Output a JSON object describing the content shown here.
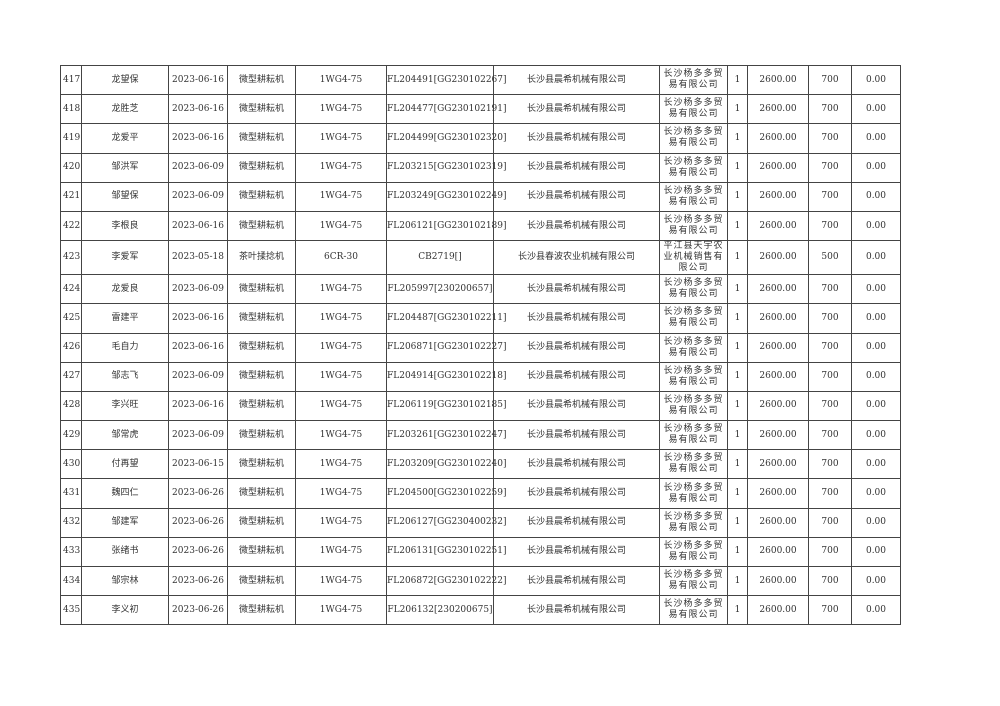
{
  "rows": [
    {
      "no": "417",
      "name": "龙望保",
      "date": "2023-06-16",
      "type": "微型耕耘机",
      "model": "1WG4-75",
      "serial": "FL204491[GG230102267]",
      "maker": "长沙县晨希机械有限公司",
      "dealer": "长沙杨多多贸易有限公司",
      "qty": "1",
      "price": "2600.00",
      "subsidy": "700",
      "other": "0.00"
    },
    {
      "no": "418",
      "name": "龙胜芝",
      "date": "2023-06-16",
      "type": "微型耕耘机",
      "model": "1WG4-75",
      "serial": "FL204477[GG230102191]",
      "maker": "长沙县晨希机械有限公司",
      "dealer": "长沙杨多多贸易有限公司",
      "qty": "1",
      "price": "2600.00",
      "subsidy": "700",
      "other": "0.00"
    },
    {
      "no": "419",
      "name": "龙爱平",
      "date": "2023-06-16",
      "type": "微型耕耘机",
      "model": "1WG4-75",
      "serial": "FL204499[GG230102320]",
      "maker": "长沙县晨希机械有限公司",
      "dealer": "长沙杨多多贸易有限公司",
      "qty": "1",
      "price": "2600.00",
      "subsidy": "700",
      "other": "0.00"
    },
    {
      "no": "420",
      "name": "邹洪军",
      "date": "2023-06-09",
      "type": "微型耕耘机",
      "model": "1WG4-75",
      "serial": "FL203215[GG230102319]",
      "maker": "长沙县晨希机械有限公司",
      "dealer": "长沙杨多多贸易有限公司",
      "qty": "1",
      "price": "2600.00",
      "subsidy": "700",
      "other": "0.00"
    },
    {
      "no": "421",
      "name": "邹望保",
      "date": "2023-06-09",
      "type": "微型耕耘机",
      "model": "1WG4-75",
      "serial": "FL203249[GG230102249]",
      "maker": "长沙县晨希机械有限公司",
      "dealer": "长沙杨多多贸易有限公司",
      "qty": "1",
      "price": "2600.00",
      "subsidy": "700",
      "other": "0.00"
    },
    {
      "no": "422",
      "name": "李根良",
      "date": "2023-06-16",
      "type": "微型耕耘机",
      "model": "1WG4-75",
      "serial": "FL206121[GG230102189]",
      "maker": "长沙县晨希机械有限公司",
      "dealer": "长沙杨多多贸易有限公司",
      "qty": "1",
      "price": "2600.00",
      "subsidy": "700",
      "other": "0.00"
    },
    {
      "no": "423",
      "name": "李爱军",
      "date": "2023-05-18",
      "type": "茶叶揉捻机",
      "model": "6CR-30",
      "serial": "CB2719[]",
      "maker": "长沙县春波农业机械有限公司",
      "dealer": "平江县天宇农业机械销售有限公司",
      "qty": "1",
      "price": "2600.00",
      "subsidy": "500",
      "other": "0.00"
    },
    {
      "no": "424",
      "name": "龙爱良",
      "date": "2023-06-09",
      "type": "微型耕耘机",
      "model": "1WG4-75",
      "serial": "FL205997[230200657]",
      "maker": "长沙县晨希机械有限公司",
      "dealer": "长沙杨多多贸易有限公司",
      "qty": "1",
      "price": "2600.00",
      "subsidy": "700",
      "other": "0.00"
    },
    {
      "no": "425",
      "name": "雷建平",
      "date": "2023-06-16",
      "type": "微型耕耘机",
      "model": "1WG4-75",
      "serial": "FL204487[GG230102211]",
      "maker": "长沙县晨希机械有限公司",
      "dealer": "长沙杨多多贸易有限公司",
      "qty": "1",
      "price": "2600.00",
      "subsidy": "700",
      "other": "0.00"
    },
    {
      "no": "426",
      "name": "毛自力",
      "date": "2023-06-16",
      "type": "微型耕耘机",
      "model": "1WG4-75",
      "serial": "FL206871[GG230102227]",
      "maker": "长沙县晨希机械有限公司",
      "dealer": "长沙杨多多贸易有限公司",
      "qty": "1",
      "price": "2600.00",
      "subsidy": "700",
      "other": "0.00"
    },
    {
      "no": "427",
      "name": "邹志飞",
      "date": "2023-06-09",
      "type": "微型耕耘机",
      "model": "1WG4-75",
      "serial": "FL204914[GG230102218]",
      "maker": "长沙县晨希机械有限公司",
      "dealer": "长沙杨多多贸易有限公司",
      "qty": "1",
      "price": "2600.00",
      "subsidy": "700",
      "other": "0.00"
    },
    {
      "no": "428",
      "name": "李兴旺",
      "date": "2023-06-16",
      "type": "微型耕耘机",
      "model": "1WG4-75",
      "serial": "FL206119[GG230102185]",
      "maker": "长沙县晨希机械有限公司",
      "dealer": "长沙杨多多贸易有限公司",
      "qty": "1",
      "price": "2600.00",
      "subsidy": "700",
      "other": "0.00"
    },
    {
      "no": "429",
      "name": "邹常虎",
      "date": "2023-06-09",
      "type": "微型耕耘机",
      "model": "1WG4-75",
      "serial": "FL203261[GG230102247]",
      "maker": "长沙县晨希机械有限公司",
      "dealer": "长沙杨多多贸易有限公司",
      "qty": "1",
      "price": "2600.00",
      "subsidy": "700",
      "other": "0.00"
    },
    {
      "no": "430",
      "name": "付再望",
      "date": "2023-06-15",
      "type": "微型耕耘机",
      "model": "1WG4-75",
      "serial": "FL203209[GG230102240]",
      "maker": "长沙县晨希机械有限公司",
      "dealer": "长沙杨多多贸易有限公司",
      "qty": "1",
      "price": "2600.00",
      "subsidy": "700",
      "other": "0.00"
    },
    {
      "no": "431",
      "name": "魏四仁",
      "date": "2023-06-26",
      "type": "微型耕耘机",
      "model": "1WG4-75",
      "serial": "FL204500[GG230102259]",
      "maker": "长沙县晨希机械有限公司",
      "dealer": "长沙杨多多贸易有限公司",
      "qty": "1",
      "price": "2600.00",
      "subsidy": "700",
      "other": "0.00"
    },
    {
      "no": "432",
      "name": "邹建军",
      "date": "2023-06-26",
      "type": "微型耕耘机",
      "model": "1WG4-75",
      "serial": "FL206127[GG230400232]",
      "maker": "长沙县晨希机械有限公司",
      "dealer": "长沙杨多多贸易有限公司",
      "qty": "1",
      "price": "2600.00",
      "subsidy": "700",
      "other": "0.00"
    },
    {
      "no": "433",
      "name": "张绪书",
      "date": "2023-06-26",
      "type": "微型耕耘机",
      "model": "1WG4-75",
      "serial": "FL206131[GG230102251]",
      "maker": "长沙县晨希机械有限公司",
      "dealer": "长沙杨多多贸易有限公司",
      "qty": "1",
      "price": "2600.00",
      "subsidy": "700",
      "other": "0.00"
    },
    {
      "no": "434",
      "name": "邹宗林",
      "date": "2023-06-26",
      "type": "微型耕耘机",
      "model": "1WG4-75",
      "serial": "FL206872[GG230102222]",
      "maker": "长沙县晨希机械有限公司",
      "dealer": "长沙杨多多贸易有限公司",
      "qty": "1",
      "price": "2600.00",
      "subsidy": "700",
      "other": "0.00"
    },
    {
      "no": "435",
      "name": "李义初",
      "date": "2023-06-26",
      "type": "微型耕耘机",
      "model": "1WG4-75",
      "serial": "FL206132[230200675]",
      "maker": "长沙县晨希机械有限公司",
      "dealer": "长沙杨多多贸易有限公司",
      "qty": "1",
      "price": "2600.00",
      "subsidy": "700",
      "other": "0.00"
    }
  ]
}
